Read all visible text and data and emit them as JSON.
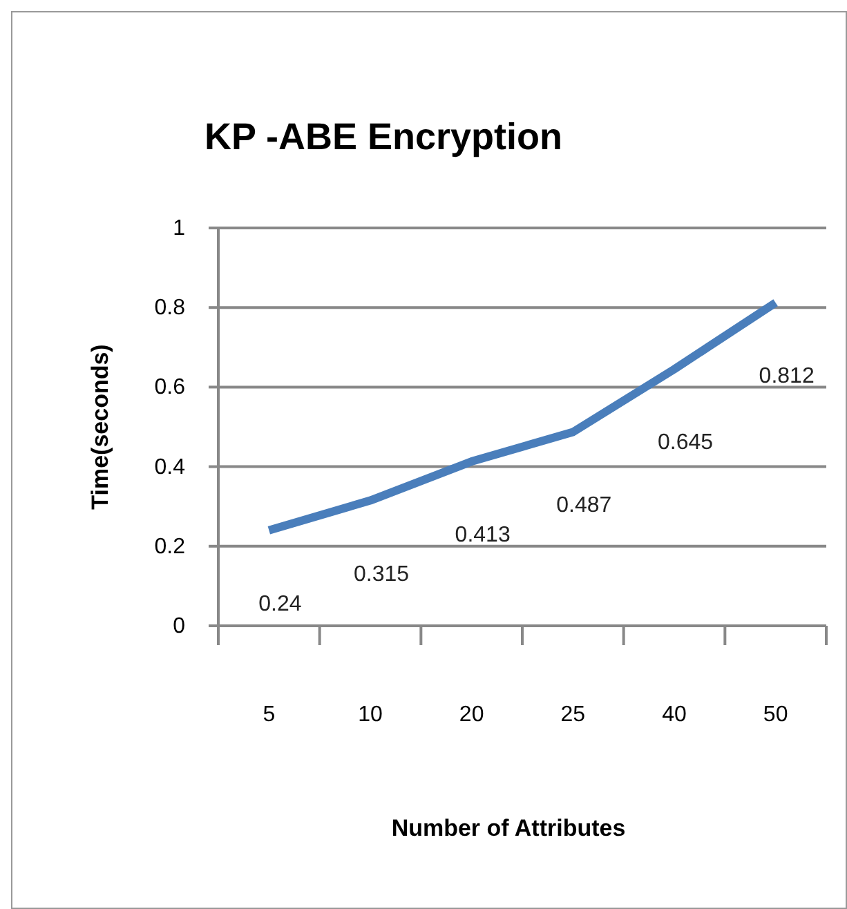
{
  "chart_data": {
    "type": "line",
    "title": "KP -ABE Encryption",
    "xlabel": "Number of Attributes",
    "ylabel": "Time(seconds)",
    "categories": [
      "5",
      "10",
      "20",
      "25",
      "40",
      "50"
    ],
    "series": [
      {
        "color": "#4a7ebb",
        "values": [
          0.24,
          0.315,
          0.413,
          0.487,
          0.645,
          0.812
        ]
      }
    ],
    "ylim": [
      0,
      1
    ],
    "yticks": [
      0,
      0.2,
      0.4,
      0.6,
      0.8,
      1
    ],
    "grid": "y",
    "data_labels": true,
    "marker": "none",
    "line_style": "solid"
  }
}
